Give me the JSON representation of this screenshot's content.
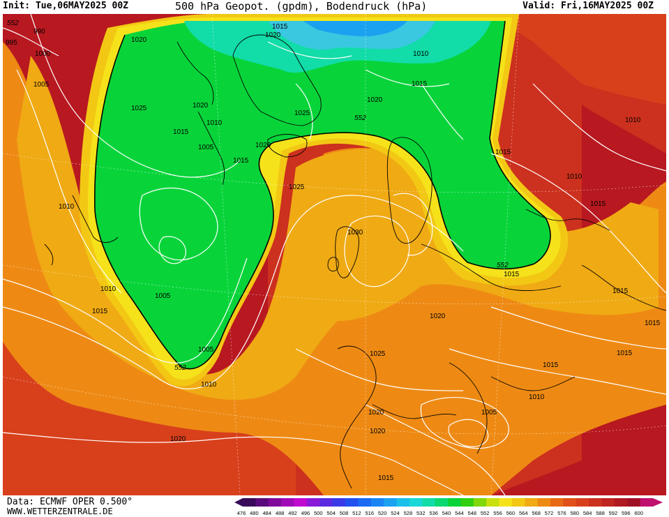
{
  "header": {
    "init": "Init: Tue,06MAY2025 00Z",
    "title": "500 hPa Geopot. (gpdm), Bodendruck (hPa)",
    "valid": "Valid: Fri,16MAY2025 00Z"
  },
  "footer": {
    "source": "Data: ECMWF OPER 0.500°",
    "site": "WWW.WETTERZENTRALE.DE"
  },
  "colors": {
    "trough_core": "#3ac8e0",
    "trough_main": "#08d43a",
    "ridge_yellow": "#f5e21a",
    "ridge_orange": "#ee8a14",
    "ridge_deep": "#d8401c",
    "ridge_darkred": "#b81820"
  },
  "legend": {
    "values": [
      "476",
      "480",
      "484",
      "488",
      "492",
      "496",
      "500",
      "504",
      "508",
      "512",
      "516",
      "520",
      "524",
      "528",
      "532",
      "536",
      "540",
      "544",
      "548",
      "552",
      "556",
      "560",
      "564",
      "568",
      "572",
      "576",
      "580",
      "584",
      "588",
      "592",
      "596",
      "600"
    ],
    "colors": [
      "#3a0a5a",
      "#5a0a7a",
      "#800a9a",
      "#a00ab8",
      "#c00ad0",
      "#8a1ad8",
      "#5a2ae0",
      "#3a3ae8",
      "#2050f0",
      "#1a6af4",
      "#1a86f4",
      "#1aa2f0",
      "#1ac0ea",
      "#1ad8d8",
      "#12dca8",
      "#0ad870",
      "#08d43a",
      "#30d010",
      "#80d80a",
      "#c8e010",
      "#f5e21a",
      "#f2c814",
      "#f0aa14",
      "#ee8a14",
      "#e86a14",
      "#e05018",
      "#d8401c",
      "#cc301e",
      "#c02420",
      "#b01822",
      "#a01024",
      "#c01070"
    ]
  },
  "geo_labels": {
    "trough_west": "552",
    "trough_center": "552",
    "trough_east": "552",
    "ridge_mid": "552"
  },
  "isobars": {
    "p0": "552",
    "p1": "990",
    "p2": "995",
    "p3": "1000",
    "p4": "1005",
    "p5": "1020",
    "p6": "1015",
    "p7": "1020",
    "p8": "1010",
    "p9": "1015",
    "p10": "1010",
    "p11": "1025",
    "p12": "1020",
    "p13": "1015",
    "p14": "1010",
    "p15": "1005",
    "p16": "1015",
    "p17": "1020",
    "p18": "1025",
    "p19": "1020",
    "p20": "1015",
    "p21": "1010",
    "p22": "1025",
    "p23": "1015",
    "p24": "1010",
    "p25": "1010",
    "p26": "1015",
    "p27": "1030",
    "p28": "1015",
    "p29": "1005",
    "p30": "1010",
    "p31": "1015",
    "p32": "1015",
    "p33": "1015",
    "p34": "1020",
    "p35": "1005",
    "p36": "1025",
    "p37": "1010",
    "p38": "1010",
    "p39": "1015",
    "p40": "1015",
    "p41": "1005",
    "p42": "1020",
    "p43": "1020",
    "p44": "1020",
    "p45": "1015"
  }
}
